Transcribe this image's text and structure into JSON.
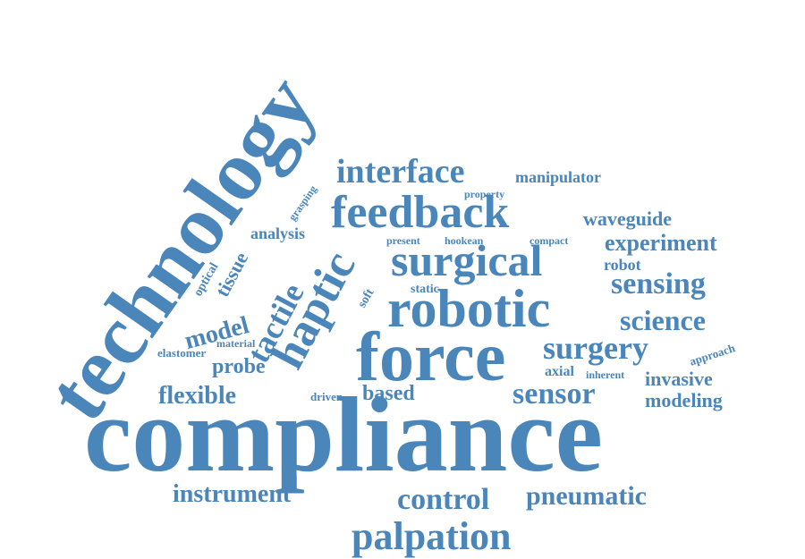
{
  "colors": {
    "word": "#4a86ba",
    "background": "#ffffff"
  },
  "words": {
    "technology": "technology",
    "compliance": "compliance",
    "force": "force",
    "robotic": "robotic",
    "feedback": "feedback",
    "surgical": "surgical",
    "haptic": "haptic",
    "interface": "interface",
    "palpation": "palpation",
    "control": "control",
    "pneumatic": "pneumatic",
    "instrument": "instrument",
    "tactile": "tactile",
    "surgery": "surgery",
    "sensor": "sensor",
    "sensing": "sensing",
    "science": "science",
    "experiment": "experiment",
    "waveguide": "waveguide",
    "flexible": "flexible",
    "based": "based",
    "model": "model",
    "probe": "probe",
    "tissue": "tissue",
    "invasive": "invasive",
    "modeling": "modeling",
    "manipulator": "manipulator",
    "analysis": "analysis",
    "robot": "robot",
    "optical": "optical",
    "soft": "soft",
    "static": "static",
    "grasping": "grasping",
    "property": "property",
    "present": "present",
    "hookean": "hookean",
    "compact": "compact",
    "material": "material",
    "elastomer": "elastomer",
    "driven": "driven",
    "axial": "axial",
    "inherent": "inherent",
    "approach": "approach"
  }
}
